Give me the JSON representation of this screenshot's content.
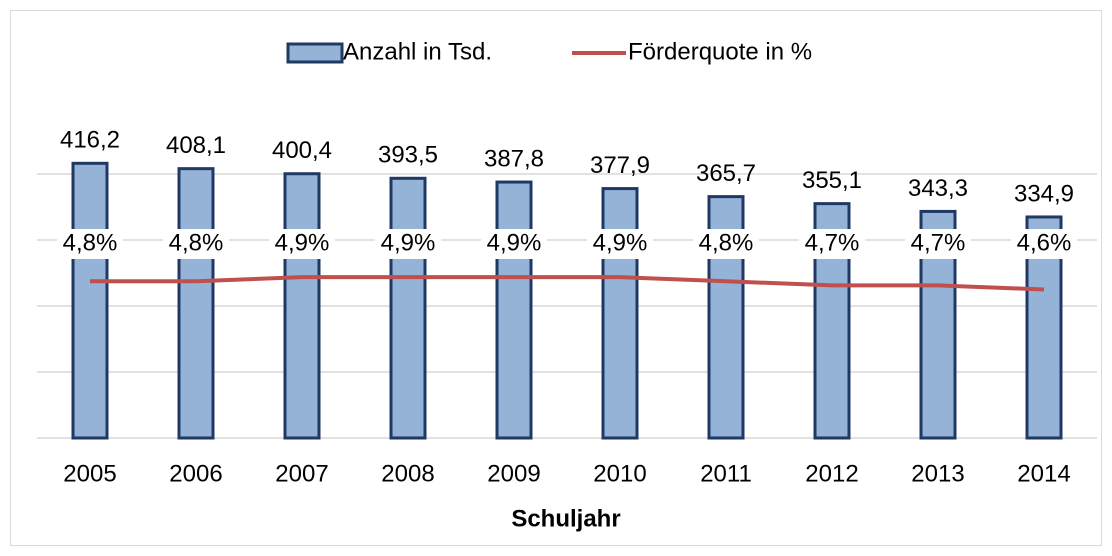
{
  "chart_data": {
    "type": "bar_line",
    "x_label": "Schuljahr",
    "categories": [
      "2005",
      "2006",
      "2007",
      "2008",
      "2009",
      "2010",
      "2011",
      "2012",
      "2013",
      "2014"
    ],
    "series": [
      {
        "name": "Anzahl in Tsd.",
        "type": "bar",
        "color": "#95b3d7",
        "edge_color": "#1f3864",
        "values": [
          416.2,
          408.1,
          400.4,
          393.5,
          387.8,
          377.9,
          365.7,
          355.1,
          343.3,
          334.9
        ],
        "value_labels": [
          "416,2",
          "408,1",
          "400,4",
          "393,5",
          "387,8",
          "377,9",
          "365,7",
          "355,1",
          "343,3",
          "334,9"
        ]
      },
      {
        "name": "Förderquote in %",
        "type": "line",
        "axis": "y2",
        "color": "#c0504d",
        "values": [
          4.8,
          4.8,
          4.9,
          4.9,
          4.9,
          4.9,
          4.8,
          4.7,
          4.7,
          4.6
        ],
        "value_labels": [
          "4,8%",
          "4,8%",
          "4,9%",
          "4,9%",
          "4,9%",
          "4,9%",
          "4,8%",
          "4,7%",
          "4,7%",
          "4,6%"
        ]
      }
    ],
    "ylim": [
      0,
      500
    ],
    "yticks": [
      0,
      100,
      200,
      300,
      400
    ],
    "y2lim": [
      1,
      9
    ],
    "grid": true,
    "legend": "top"
  }
}
